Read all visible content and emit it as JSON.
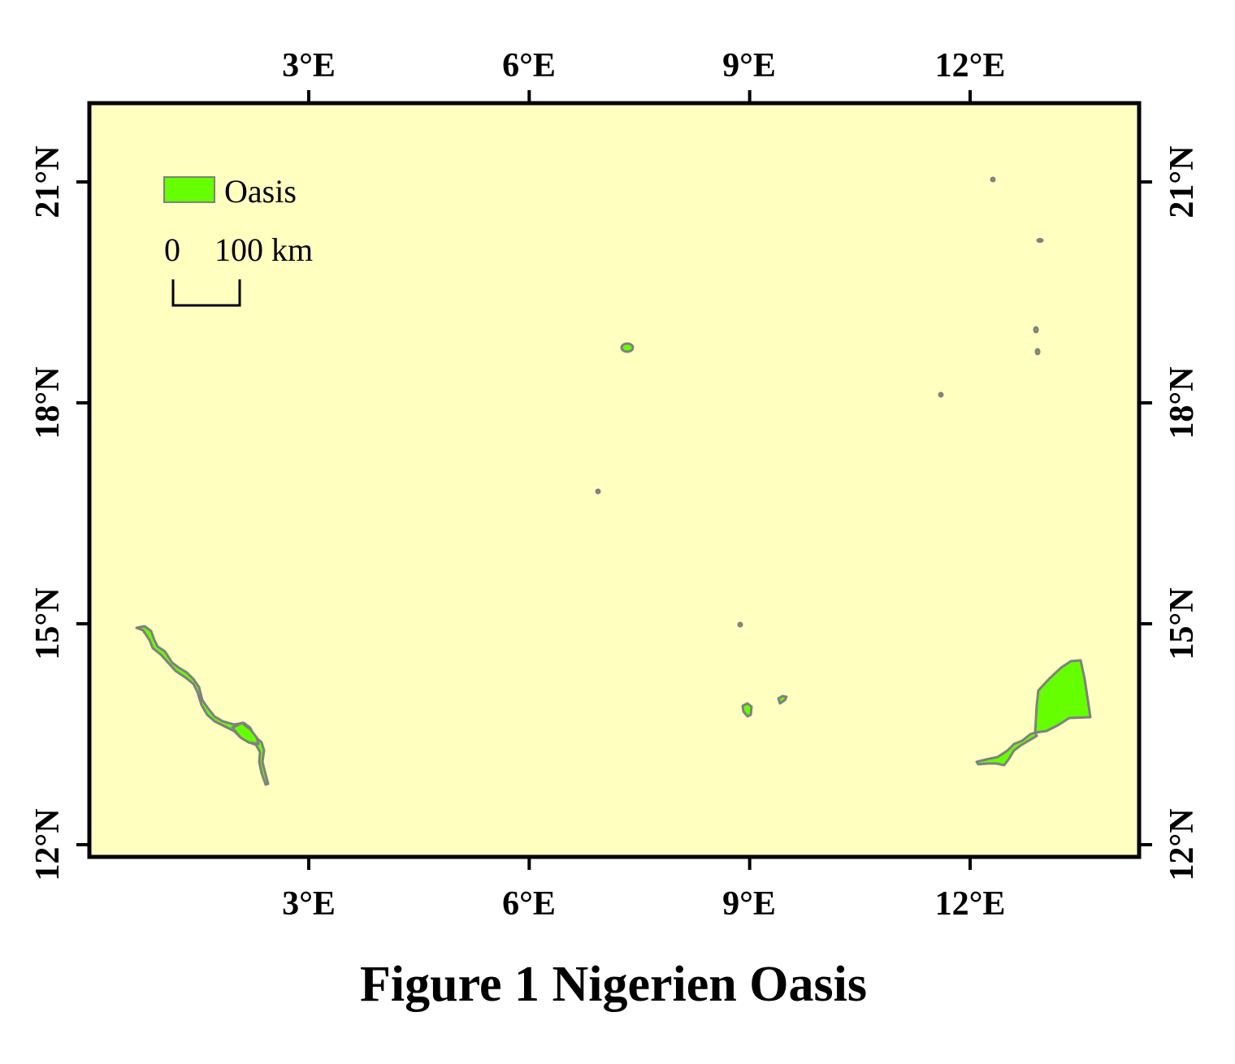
{
  "map": {
    "background_color": "#ffffc0",
    "oasis_color": "#66ff00",
    "outline_color": "#808080",
    "longitude_ticks": [
      3,
      6,
      9,
      12
    ],
    "latitude_ticks": [
      12,
      15,
      18,
      21
    ],
    "longitude_labels": [
      "3°E",
      "6°E",
      "9°E",
      "12°E"
    ],
    "latitude_labels": [
      "12°N",
      "15°N",
      "18°N",
      "21°N"
    ]
  },
  "legend": {
    "oasis_label": "Oasis",
    "scale_zero": "0",
    "scale_max": "100 km"
  },
  "title": "Figure 1  Nigerien Oasis"
}
